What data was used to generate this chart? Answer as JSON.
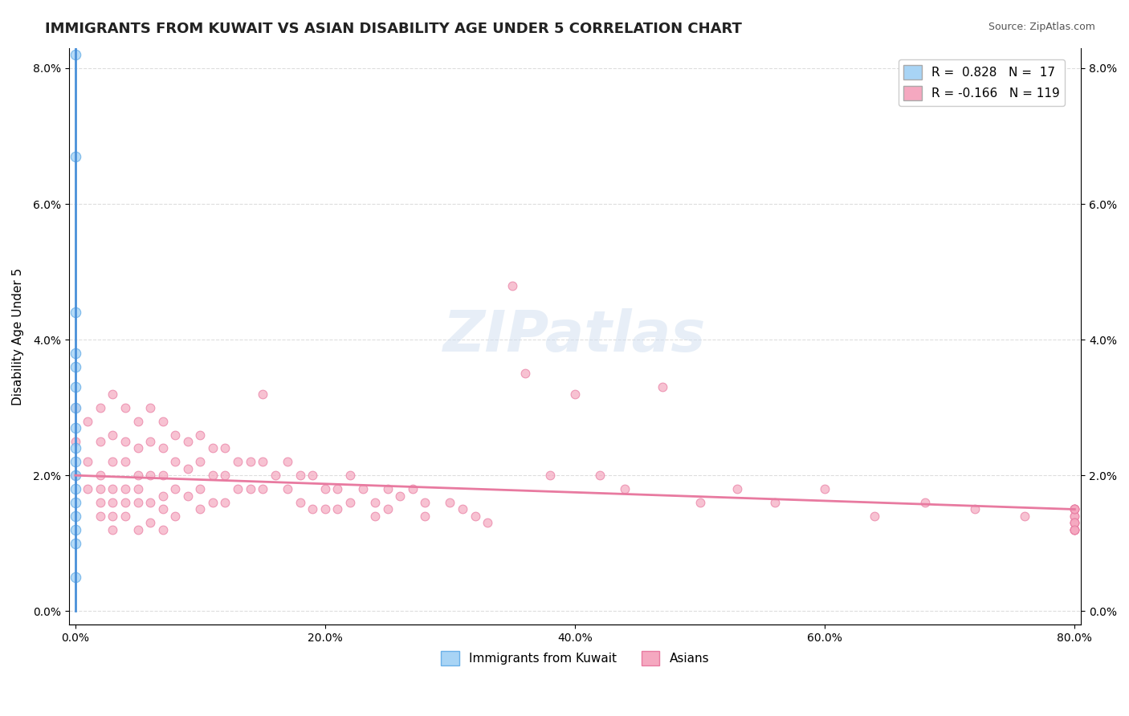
{
  "title": "IMMIGRANTS FROM KUWAIT VS ASIAN DISABILITY AGE UNDER 5 CORRELATION CHART",
  "source": "Source: ZipAtlas.com",
  "xlabel_ticks": [
    "0.0%",
    "20.0%",
    "40.0%",
    "60.0%",
    "80.0%"
  ],
  "ylabel_ticks": [
    "0.0%",
    "2.0%",
    "4.0%",
    "6.0%",
    "8.0%"
  ],
  "xlim": [
    -0.005,
    0.805
  ],
  "ylim": [
    -0.002,
    0.083
  ],
  "legend_entries": [
    {
      "label": "R =  0.828   N =  17",
      "color": "#a8d4f5"
    },
    {
      "label": "R = -0.166   N = 119",
      "color": "#f5a8c0"
    }
  ],
  "kuwait_scatter": {
    "color": "#a8d4f5",
    "edge_color": "#6ab0e8",
    "x": [
      0.0,
      0.0,
      0.0,
      0.0,
      0.0,
      0.0,
      0.0,
      0.0,
      0.0,
      0.0,
      0.0,
      0.0,
      0.0,
      0.0,
      0.0,
      0.0,
      0.0
    ],
    "y": [
      0.082,
      0.067,
      0.044,
      0.038,
      0.036,
      0.033,
      0.03,
      0.027,
      0.024,
      0.022,
      0.02,
      0.018,
      0.016,
      0.014,
      0.012,
      0.01,
      0.005
    ]
  },
  "kuwait_line": {
    "color": "#4a90d9",
    "x": [
      0.0,
      0.0
    ],
    "slope": 120.0,
    "intercept": 0.005
  },
  "asian_scatter": {
    "color": "#f5a8c0",
    "edge_color": "#e87aa0",
    "x": [
      0.0,
      0.0,
      0.0,
      0.01,
      0.01,
      0.01,
      0.02,
      0.02,
      0.02,
      0.02,
      0.02,
      0.02,
      0.03,
      0.03,
      0.03,
      0.03,
      0.03,
      0.03,
      0.03,
      0.04,
      0.04,
      0.04,
      0.04,
      0.04,
      0.04,
      0.05,
      0.05,
      0.05,
      0.05,
      0.05,
      0.05,
      0.06,
      0.06,
      0.06,
      0.06,
      0.06,
      0.07,
      0.07,
      0.07,
      0.07,
      0.07,
      0.07,
      0.08,
      0.08,
      0.08,
      0.08,
      0.09,
      0.09,
      0.09,
      0.1,
      0.1,
      0.1,
      0.1,
      0.11,
      0.11,
      0.11,
      0.12,
      0.12,
      0.12,
      0.13,
      0.13,
      0.14,
      0.14,
      0.15,
      0.15,
      0.15,
      0.16,
      0.17,
      0.17,
      0.18,
      0.18,
      0.19,
      0.19,
      0.2,
      0.2,
      0.21,
      0.21,
      0.22,
      0.22,
      0.23,
      0.24,
      0.24,
      0.25,
      0.25,
      0.26,
      0.27,
      0.28,
      0.28,
      0.3,
      0.31,
      0.32,
      0.33,
      0.35,
      0.36,
      0.38,
      0.4,
      0.42,
      0.44,
      0.47,
      0.5,
      0.53,
      0.56,
      0.6,
      0.64,
      0.68,
      0.72,
      0.76,
      0.8,
      0.8,
      0.8,
      0.8,
      0.8,
      0.8,
      0.8,
      0.8,
      0.8,
      0.8,
      0.8,
      0.8,
      0.8
    ],
    "y": [
      0.03,
      0.025,
      0.02,
      0.028,
      0.022,
      0.018,
      0.03,
      0.025,
      0.02,
      0.018,
      0.016,
      0.014,
      0.032,
      0.026,
      0.022,
      0.018,
      0.016,
      0.014,
      0.012,
      0.03,
      0.025,
      0.022,
      0.018,
      0.016,
      0.014,
      0.028,
      0.024,
      0.02,
      0.018,
      0.016,
      0.012,
      0.03,
      0.025,
      0.02,
      0.016,
      0.013,
      0.028,
      0.024,
      0.02,
      0.017,
      0.015,
      0.012,
      0.026,
      0.022,
      0.018,
      0.014,
      0.025,
      0.021,
      0.017,
      0.026,
      0.022,
      0.018,
      0.015,
      0.024,
      0.02,
      0.016,
      0.024,
      0.02,
      0.016,
      0.022,
      0.018,
      0.022,
      0.018,
      0.032,
      0.022,
      0.018,
      0.02,
      0.022,
      0.018,
      0.02,
      0.016,
      0.02,
      0.015,
      0.018,
      0.015,
      0.018,
      0.015,
      0.02,
      0.016,
      0.018,
      0.016,
      0.014,
      0.018,
      0.015,
      0.017,
      0.018,
      0.016,
      0.014,
      0.016,
      0.015,
      0.014,
      0.013,
      0.048,
      0.035,
      0.02,
      0.032,
      0.02,
      0.018,
      0.033,
      0.016,
      0.018,
      0.016,
      0.018,
      0.014,
      0.016,
      0.015,
      0.014,
      0.012,
      0.015,
      0.014,
      0.013,
      0.012,
      0.015,
      0.014,
      0.013,
      0.012,
      0.015,
      0.013,
      0.012,
      0.015
    ]
  },
  "asian_line": {
    "color": "#e87aa0",
    "x0": 0.0,
    "x1": 0.8,
    "y0": 0.02,
    "y1": 0.015
  },
  "background_color": "#ffffff",
  "grid_color": "#dddddd",
  "title_fontsize": 13,
  "axis_label_fontsize": 11,
  "tick_fontsize": 10,
  "watermark": "ZIPatlas",
  "watermark_color": "#d0dff0"
}
